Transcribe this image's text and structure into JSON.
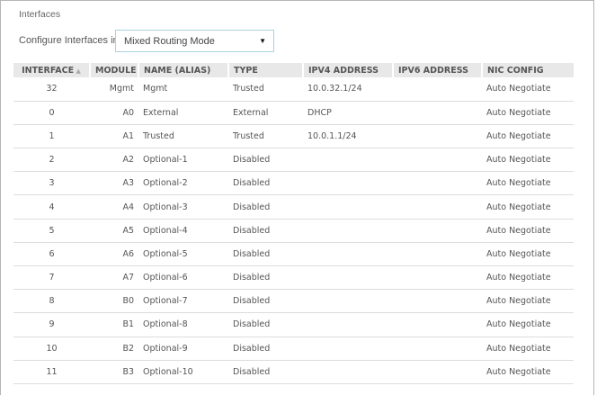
{
  "title": "Interfaces",
  "configure": {
    "label": "Configure Interfaces in",
    "selected": "Mixed Routing Mode",
    "arrow_icon": "triangle-down"
  },
  "table": {
    "headers": [
      "INTERFACE",
      "MODULE",
      "NAME (ALIAS)",
      "TYPE",
      "IPV4 ADDRESS",
      "IPV6 ADDRESS",
      "NIC CONFIG"
    ],
    "sort_icon": "sort-up-down",
    "rows": [
      [
        "32",
        "Mgmt",
        "Mgmt",
        "Trusted",
        "10.0.32.1/24",
        "",
        "Auto Negotiate"
      ],
      [
        "0",
        "A0",
        "External",
        "External",
        "DHCP",
        "",
        "Auto Negotiate"
      ],
      [
        "1",
        "A1",
        "Trusted",
        "Trusted",
        "10.0.1.1/24",
        "",
        "Auto Negotiate"
      ],
      [
        "2",
        "A2",
        "Optional-1",
        "Disabled",
        "",
        "",
        "Auto Negotiate"
      ],
      [
        "3",
        "A3",
        "Optional-2",
        "Disabled",
        "",
        "",
        "Auto Negotiate"
      ],
      [
        "4",
        "A4",
        "Optional-3",
        "Disabled",
        "",
        "",
        "Auto Negotiate"
      ],
      [
        "5",
        "A5",
        "Optional-4",
        "Disabled",
        "",
        "",
        "Auto Negotiate"
      ],
      [
        "6",
        "A6",
        "Optional-5",
        "Disabled",
        "",
        "",
        "Auto Negotiate"
      ],
      [
        "7",
        "A7",
        "Optional-6",
        "Disabled",
        "",
        "",
        "Auto Negotiate"
      ],
      [
        "8",
        "B0",
        "Optional-7",
        "Disabled",
        "",
        "",
        "Auto Negotiate"
      ],
      [
        "9",
        "B1",
        "Optional-8",
        "Disabled",
        "",
        "",
        "Auto Negotiate"
      ],
      [
        "10",
        "B2",
        "Optional-9",
        "Disabled",
        "",
        "",
        "Auto Negotiate"
      ],
      [
        "11",
        "B3",
        "Optional-10",
        "Disabled",
        "",
        "",
        "Auto Negotiate"
      ]
    ]
  }
}
